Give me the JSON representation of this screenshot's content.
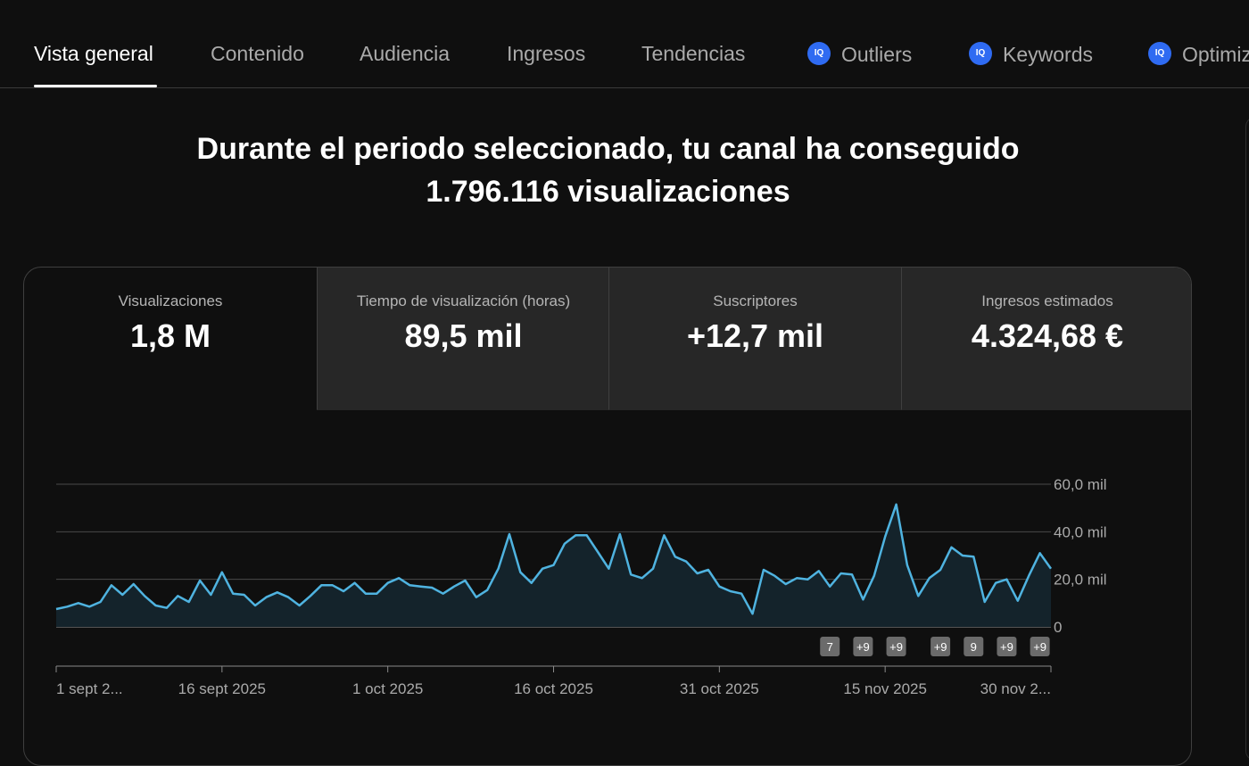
{
  "tabs": [
    {
      "label": "Vista general",
      "active": true
    },
    {
      "label": "Contenido"
    },
    {
      "label": "Audiencia"
    },
    {
      "label": "Ingresos"
    },
    {
      "label": "Tendencias"
    },
    {
      "label": "Outliers",
      "icon": "iq-icon"
    },
    {
      "label": "Keywords",
      "icon": "iq-icon"
    },
    {
      "label": "Optimiz",
      "icon": "iq-icon"
    }
  ],
  "iq_badge": "IQ",
  "headline": {
    "line1": "Durante el periodo seleccionado, tu canal ha conseguido",
    "line2": "1.796.116 visualizaciones"
  },
  "metrics": [
    {
      "label": "Visualizaciones",
      "value": "1,8 M",
      "selected": true
    },
    {
      "label": "Tiempo de visualización (horas)",
      "value": "89,5 mil"
    },
    {
      "label": "Suscriptores",
      "value": "+12,7 mil"
    },
    {
      "label": "Ingresos estimados",
      "value": "4.324,68 €"
    }
  ],
  "colors": {
    "line": "#4fb3e0",
    "accent_icon": "#2f6bf2"
  },
  "chart_data": {
    "type": "area",
    "title": "",
    "xlabel": "",
    "ylabel": "",
    "ylim": [
      0,
      60000
    ],
    "y_ticks": [
      "60,0 mil",
      "40,0 mil",
      "20,0 mil",
      "0"
    ],
    "y_tick_values": [
      60000,
      40000,
      20000,
      0
    ],
    "x_tick_labels": [
      "1 sept 2...",
      "16 sept 2025",
      "1 oct 2025",
      "16 oct 2025",
      "31 oct 2025",
      "15 nov 2025",
      "30 nov 2..."
    ],
    "x_tick_days": [
      0,
      15,
      30,
      45,
      60,
      75,
      90
    ],
    "series": [
      {
        "values": [
          7500,
          8500,
          10000,
          8500,
          10500,
          17500,
          13500,
          18000,
          13000,
          9000,
          8000,
          13000,
          10500,
          19500,
          13500,
          23000,
          14000,
          13500,
          9000,
          12500,
          14500,
          12500,
          9000,
          13000,
          17500,
          17500,
          15000,
          18500,
          14000,
          14000,
          18500,
          20500,
          17500,
          17000,
          16500,
          14000,
          17000,
          19500,
          12500,
          15500,
          24500,
          39000,
          23000,
          18500,
          24500,
          26000,
          35000,
          38500,
          38500,
          31500,
          24500,
          39000,
          22000,
          20500,
          24500,
          38500,
          29500,
          27500,
          22500,
          24000,
          17000,
          15000,
          14000,
          5500,
          24000,
          21500,
          18000,
          20500,
          20000,
          23500,
          17000,
          22500,
          22000,
          11500,
          21500,
          38000,
          51500,
          26000,
          13000,
          20500,
          24000,
          33500,
          30000,
          29500,
          10500,
          18500,
          20000,
          11000,
          21500,
          31000,
          24500
        ]
      }
    ],
    "annotation_markers": [
      {
        "label": "7",
        "day": 70
      },
      {
        "label": "+9",
        "day": 73
      },
      {
        "label": "+9",
        "day": 76
      },
      {
        "label": "+9",
        "day": 80
      },
      {
        "label": "9",
        "day": 83
      },
      {
        "label": "+9",
        "day": 86
      },
      {
        "label": "+9",
        "day": 89
      }
    ]
  }
}
